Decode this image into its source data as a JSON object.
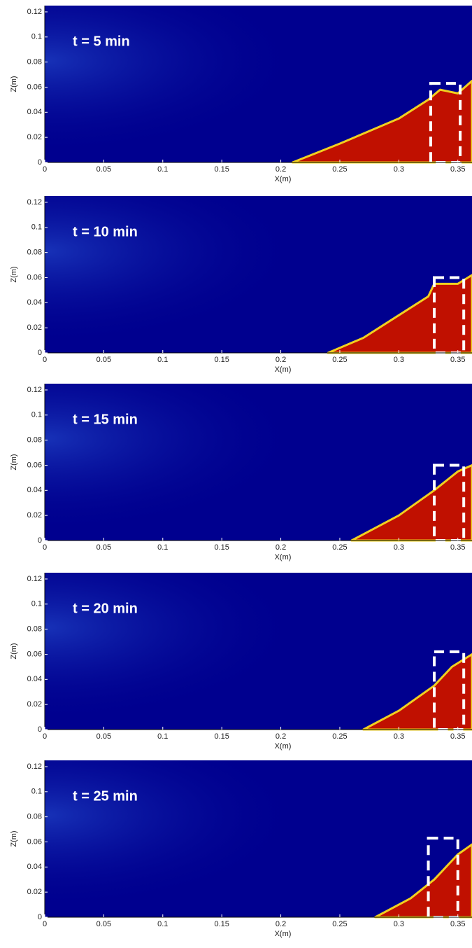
{
  "chart_data": [
    {
      "type": "area",
      "annotation": "t = 5 min",
      "xlabel": "X(m)",
      "ylabel": "Z(m)",
      "x": [
        0.21,
        0.25,
        0.3,
        0.325,
        0.335,
        0.35,
        0.362
      ],
      "values": [
        0,
        0.015,
        0.035,
        0.05,
        0.058,
        0.055,
        0.065
      ],
      "box_x": [
        0.327,
        0.352
      ],
      "box_y": [
        0,
        0.063
      ],
      "xlim": [
        0,
        0.362
      ],
      "ylim": [
        0,
        0.125
      ],
      "xticks": [
        0,
        0.05,
        0.1,
        0.15,
        0.2,
        0.25,
        0.3,
        0.35
      ],
      "yticks": [
        0,
        0.02,
        0.04,
        0.06,
        0.08,
        0.1,
        0.12
      ],
      "color": "#c01000",
      "background": "#00008f"
    },
    {
      "type": "area",
      "annotation": "t = 10 min",
      "xlabel": "X(m)",
      "ylabel": "Z(m)",
      "x": [
        0.24,
        0.27,
        0.3,
        0.325,
        0.33,
        0.35,
        0.362
      ],
      "values": [
        0,
        0.012,
        0.03,
        0.045,
        0.055,
        0.055,
        0.062
      ],
      "box_x": [
        0.33,
        0.355
      ],
      "box_y": [
        0,
        0.06
      ],
      "xlim": [
        0,
        0.362
      ],
      "ylim": [
        0,
        0.125
      ],
      "xticks": [
        0,
        0.05,
        0.1,
        0.15,
        0.2,
        0.25,
        0.3,
        0.35
      ],
      "yticks": [
        0,
        0.02,
        0.04,
        0.06,
        0.08,
        0.1,
        0.12
      ],
      "color": "#c01000",
      "background": "#00008f"
    },
    {
      "type": "area",
      "annotation": "t = 15 min",
      "xlabel": "X(m)",
      "ylabel": "Z(m)",
      "x": [
        0.26,
        0.3,
        0.33,
        0.35,
        0.362
      ],
      "values": [
        0,
        0.02,
        0.04,
        0.055,
        0.06
      ],
      "box_x": [
        0.33,
        0.355
      ],
      "box_y": [
        0,
        0.06
      ],
      "xlim": [
        0,
        0.362
      ],
      "ylim": [
        0,
        0.125
      ],
      "xticks": [
        0,
        0.05,
        0.1,
        0.15,
        0.2,
        0.25,
        0.3,
        0.35
      ],
      "yticks": [
        0,
        0.02,
        0.04,
        0.06,
        0.08,
        0.1,
        0.12
      ],
      "color": "#c01000",
      "background": "#00008f"
    },
    {
      "type": "area",
      "annotation": "t = 20 min",
      "xlabel": "X(m)",
      "ylabel": "Z(m)",
      "x": [
        0.27,
        0.3,
        0.33,
        0.345,
        0.362
      ],
      "values": [
        0,
        0.015,
        0.035,
        0.05,
        0.06
      ],
      "box_x": [
        0.33,
        0.355
      ],
      "box_y": [
        0,
        0.062
      ],
      "xlim": [
        0,
        0.362
      ],
      "ylim": [
        0,
        0.125
      ],
      "xticks": [
        0,
        0.05,
        0.1,
        0.15,
        0.2,
        0.25,
        0.3,
        0.35
      ],
      "yticks": [
        0,
        0.02,
        0.04,
        0.06,
        0.08,
        0.1,
        0.12
      ],
      "color": "#c01000",
      "background": "#00008f"
    },
    {
      "type": "area",
      "annotation": "t = 25 min",
      "xlabel": "X(m)",
      "ylabel": "Z(m)",
      "x": [
        0.28,
        0.31,
        0.33,
        0.35,
        0.362
      ],
      "values": [
        0,
        0.015,
        0.03,
        0.05,
        0.058
      ],
      "box_x": [
        0.325,
        0.35
      ],
      "box_y": [
        0,
        0.063
      ],
      "xlim": [
        0,
        0.362
      ],
      "ylim": [
        0,
        0.125
      ],
      "xticks": [
        0,
        0.05,
        0.1,
        0.15,
        0.2,
        0.25,
        0.3,
        0.35
      ],
      "yticks": [
        0,
        0.02,
        0.04,
        0.06,
        0.08,
        0.1,
        0.12
      ],
      "color": "#c01000",
      "background": "#00008f"
    }
  ]
}
